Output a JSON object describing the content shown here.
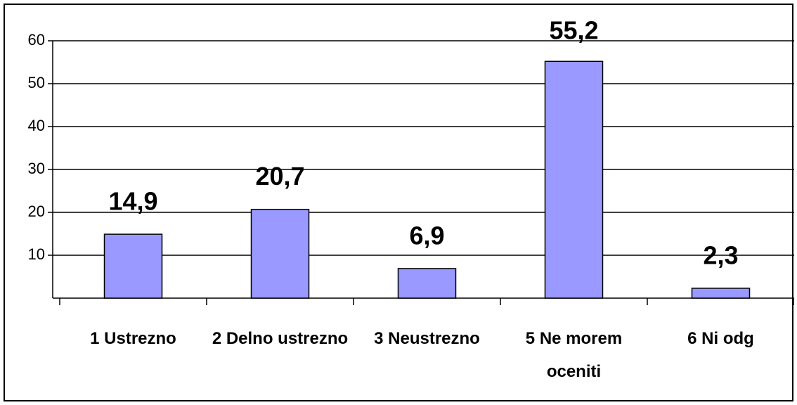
{
  "chart_data": {
    "type": "bar",
    "categories": [
      "1 Ustrezno",
      "2 Delno ustrezno",
      "3 Neustrezno",
      "5 Ne morem oceniti",
      "6 Ni odg"
    ],
    "values": [
      14.9,
      20.7,
      6.9,
      55.2,
      2.3
    ],
    "value_labels": [
      "14,9",
      "20,7",
      "6,9",
      "55,2",
      "2,3"
    ],
    "color": "#9999ff",
    "ylim": [
      0,
      60
    ],
    "yticks": [
      10,
      20,
      30,
      40,
      50,
      60
    ],
    "grid": true
  }
}
